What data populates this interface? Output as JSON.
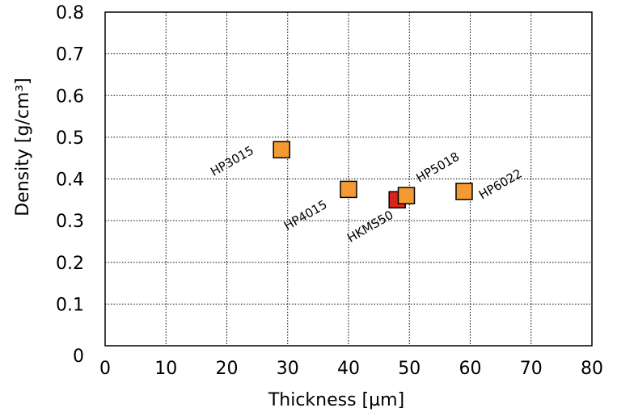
{
  "chart_data": {
    "type": "scatter",
    "xlabel": "Thickness [µm]",
    "ylabel": "Density [g/cm³]",
    "xlim": [
      0,
      80
    ],
    "ylim": [
      0,
      0.8
    ],
    "x_ticks": [
      "0",
      "10",
      "20",
      "30",
      "40",
      "50",
      "60",
      "70",
      "80"
    ],
    "y_ticks": [
      "0",
      "0.1",
      "0.2",
      "0.3",
      "0.4",
      "0.5",
      "0.6",
      "0.7",
      "0.8"
    ],
    "grid": true,
    "points": [
      {
        "label": "HP3015",
        "x": 29,
        "y": 0.47,
        "color": "#f59a32"
      },
      {
        "label": "HP4015",
        "x": 40,
        "y": 0.375,
        "color": "#f59a32"
      },
      {
        "label": "HKMS50",
        "x": 48,
        "y": 0.35,
        "color": "#d8251a"
      },
      {
        "label": "HP5018",
        "x": 49.5,
        "y": 0.36,
        "color": "#f59a32"
      },
      {
        "label": "HP6022",
        "x": 59,
        "y": 0.37,
        "color": "#f59a32"
      }
    ]
  }
}
